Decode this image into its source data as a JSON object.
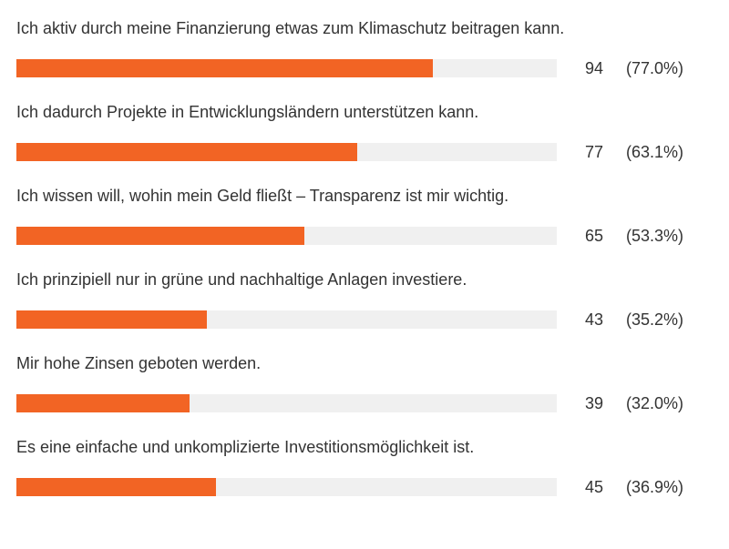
{
  "colors": {
    "bar": "#f26424",
    "track": "#f0f0f0",
    "text": "#333333"
  },
  "chart_data": {
    "type": "bar",
    "orientation": "horizontal",
    "categories": [
      "Ich aktiv durch meine Finanzierung etwas zum Klimaschutz beitragen kann.",
      "Ich dadurch Projekte in Entwicklungsländern unterstützen kann.",
      "Ich wissen will, wohin mein Geld fließt – Transparenz ist mir wichtig.",
      "Ich prinzipiell nur in grüne und nachhaltige Anlagen investiere.",
      "Mir hohe Zinsen geboten werden.",
      "Es eine einfache und unkomplizierte Investitionsmöglichkeit ist."
    ],
    "values": [
      94,
      77,
      65,
      43,
      39,
      45
    ],
    "percent_labels": [
      "(77.0%)",
      "(63.1%)",
      "(53.3%)",
      "(35.2%)",
      "(32.0%)",
      "(36.9%)"
    ],
    "percent_values": [
      77.0,
      63.1,
      53.3,
      35.2,
      32.0,
      36.9
    ],
    "xlim": [
      0,
      100
    ],
    "grid": false,
    "legend": "none"
  }
}
